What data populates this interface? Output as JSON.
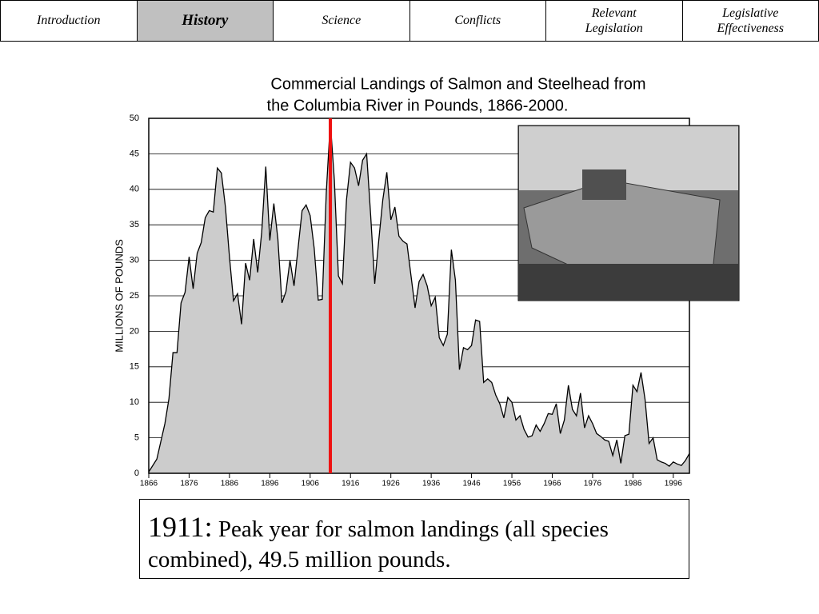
{
  "nav": {
    "tabs": [
      "Introduction",
      "History",
      "Science",
      "Conflicts",
      "Relevant Legislation",
      "Legislative Effectiveness"
    ],
    "active": 1
  },
  "chart_data": {
    "type": "area",
    "title": [
      "Commercial Landings of Salmon and Steelhead from",
      "the Columbia River in Pounds, 1866-2000."
    ],
    "y_label": "MILLIONS OF POUNDS",
    "x": [
      1866,
      1868,
      1870,
      1871,
      1872,
      1873,
      1874,
      1875,
      1876,
      1877,
      1878,
      1879,
      1880,
      1881,
      1882,
      1883,
      1884,
      1885,
      1886,
      1887,
      1888,
      1889,
      1890,
      1891,
      1892,
      1893,
      1894,
      1895,
      1896,
      1897,
      1898,
      1899,
      1900,
      1901,
      1902,
      1903,
      1904,
      1905,
      1906,
      1907,
      1908,
      1909,
      1910,
      1911,
      1912,
      1913,
      1914,
      1915,
      1916,
      1917,
      1918,
      1919,
      1920,
      1921,
      1922,
      1923,
      1924,
      1925,
      1926,
      1927,
      1928,
      1929,
      1930,
      1931,
      1932,
      1933,
      1934,
      1935,
      1936,
      1937,
      1938,
      1939,
      1940,
      1941,
      1942,
      1943,
      1944,
      1945,
      1946,
      1947,
      1948,
      1949,
      1950,
      1951,
      1952,
      1953,
      1954,
      1955,
      1956,
      1957,
      1958,
      1959,
      1960,
      1961,
      1962,
      1963,
      1964,
      1965,
      1966,
      1967,
      1968,
      1969,
      1970,
      1971,
      1972,
      1973,
      1974,
      1975,
      1976,
      1977,
      1978,
      1979,
      1980,
      1981,
      1982,
      1983,
      1984,
      1985,
      1986,
      1987,
      1988,
      1989,
      1990,
      1991,
      1992,
      1993,
      1994,
      1995,
      1996,
      1997,
      1998,
      1999,
      2000
    ],
    "values": [
      0.2,
      2,
      7,
      10.5,
      17,
      17,
      24,
      25.5,
      30.5,
      26,
      31,
      32.5,
      36,
      37,
      36.8,
      43,
      42.3,
      37.5,
      30.5,
      24.3,
      25.3,
      21,
      29.6,
      27.2,
      33,
      28.3,
      34,
      43.2,
      32.8,
      38,
      33,
      24,
      25.6,
      30,
      26.4,
      31.7,
      37,
      37.8,
      36.3,
      31.7,
      24.4,
      24.5,
      39.6,
      49.5,
      41.3,
      27.8,
      26.7,
      38.5,
      43.8,
      43,
      40.5,
      44.1,
      45,
      36.3,
      26.7,
      32.8,
      38.5,
      42.4,
      35.7,
      37.5,
      33.4,
      32.7,
      32.3,
      27.8,
      23.3,
      27,
      28,
      26.4,
      23.6,
      24.8,
      19.1,
      18,
      19.6,
      31.5,
      27.2,
      14.6,
      17.7,
      17.4,
      18,
      21.6,
      21.4,
      12.8,
      13.3,
      12.8,
      11,
      9.8,
      7.8,
      10.7,
      10,
      7.5,
      8.1,
      6.2,
      5.1,
      5.3,
      6.8,
      5.9,
      7,
      8.4,
      8.3,
      9.8,
      5.6,
      7.5,
      12.4,
      9,
      8.1,
      11.3,
      6.4,
      8.1,
      7,
      5.6,
      5.2,
      4.7,
      4.5,
      2.5,
      4.7,
      1.4,
      5.3,
      5.5,
      12.4,
      11.5,
      14.2,
      10.4,
      4.2,
      5,
      1.9,
      1.6,
      1.4,
      1,
      1.6,
      1.3,
      1.1,
      1.8,
      2.8
    ],
    "color": "#cccccc",
    "xlim": [
      1866,
      2000
    ],
    "xticks": [
      1866,
      1876,
      1886,
      1896,
      1906,
      1916,
      1926,
      1936,
      1946,
      1956,
      1966,
      1976,
      1986,
      1996
    ],
    "ylim": [
      0,
      50
    ],
    "yticks": [
      0,
      5,
      10,
      15,
      20,
      25,
      30,
      35,
      40,
      45,
      50
    ],
    "grid": true,
    "highlight_x": 1911,
    "highlight_color": "#ee1111"
  },
  "caption": {
    "year": "1911:",
    "text": "Peak year for salmon landings (all species combined), 49.5 million pounds."
  }
}
